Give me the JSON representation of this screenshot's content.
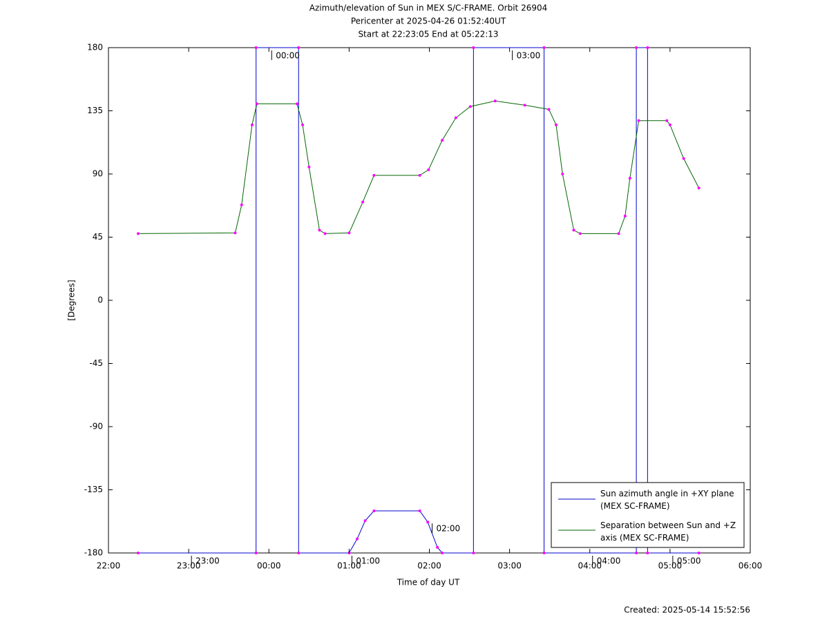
{
  "chart_data": {
    "type": "line",
    "title_lines": [
      "Azimuth/elevation of Sun in MEX S/C-FRAME.  Orbit 26904",
      "Pericenter at 2025-04-26 01:52:40UT",
      "Start at 22:23:05 End at 05:22:13"
    ],
    "xlabel": "Time of day UT",
    "ylabel": "[Degrees]",
    "footer": "Created: 2025-05-14 15:52:56",
    "xlim": [
      22,
      30
    ],
    "ylim": [
      -180,
      180
    ],
    "xticks": [
      {
        "value": 22,
        "label": "22:00"
      },
      {
        "value": 23,
        "label": "23:00"
      },
      {
        "value": 24,
        "label": "00:00"
      },
      {
        "value": 25,
        "label": "01:00"
      },
      {
        "value": 26,
        "label": "02:00"
      },
      {
        "value": 27,
        "label": "03:00"
      },
      {
        "value": 28,
        "label": "04:00"
      },
      {
        "value": 29,
        "label": "05:00"
      },
      {
        "value": 30,
        "label": "06:00"
      }
    ],
    "yticks": [
      180,
      135,
      90,
      45,
      0,
      -45,
      -90,
      -135,
      -180
    ],
    "grid": false,
    "legend": "lower right",
    "marker_color": "#ff00ff",
    "series": [
      {
        "name": "Sun azimuth angle in +XY plane (MEX SC-FRAME)",
        "color": "#0000cc",
        "x": [
          22.37,
          23.84,
          23.84,
          24.37,
          24.37,
          25.0,
          25.1,
          25.2,
          25.31,
          25.88,
          25.98,
          26.1,
          26.16,
          26.55,
          26.55,
          27.43,
          27.43,
          28.58,
          28.58,
          28.72,
          28.72,
          29.36
        ],
        "values": [
          -180,
          -180,
          180,
          180,
          -180,
          -180,
          -170,
          -157,
          -150,
          -150,
          -158,
          -176,
          -180,
          -180,
          180,
          180,
          -180,
          -180,
          180,
          180,
          -180,
          -180
        ]
      },
      {
        "name": "Separation between Sun and +Z axis (MEX SC-FRAME)",
        "color": "#006600",
        "x": [
          22.37,
          23.58,
          23.66,
          23.79,
          23.85,
          24.35,
          24.42,
          24.5,
          24.63,
          24.7,
          25.0,
          25.17,
          25.31,
          25.88,
          25.99,
          26.16,
          26.33,
          26.51,
          26.82,
          27.19,
          27.49,
          27.58,
          27.66,
          27.8,
          27.88,
          28.36,
          28.44,
          28.5,
          28.61,
          28.96,
          29.0,
          29.17,
          29.36
        ],
        "values": [
          47.5,
          48,
          68,
          125,
          140,
          140,
          125,
          95,
          50,
          47.5,
          48,
          70,
          89,
          89,
          93,
          114,
          130,
          138,
          142,
          139,
          136,
          125,
          90,
          50,
          47.5,
          47.5,
          60,
          87,
          128,
          128,
          125,
          101,
          80
        ]
      }
    ],
    "annotations": [
      {
        "text": "23:00",
        "x": 23.0,
        "y": -180
      },
      {
        "text": "00:00",
        "x": 24.0,
        "y": 180
      },
      {
        "text": "01:00",
        "x": 25.0,
        "y": -180
      },
      {
        "text": "02:00",
        "x": 26.0,
        "y": -157
      },
      {
        "text": "03:00",
        "x": 27.0,
        "y": 180
      },
      {
        "text": "04:00",
        "x": 28.0,
        "y": -180
      },
      {
        "text": "05:00",
        "x": 29.0,
        "y": -180
      }
    ]
  }
}
